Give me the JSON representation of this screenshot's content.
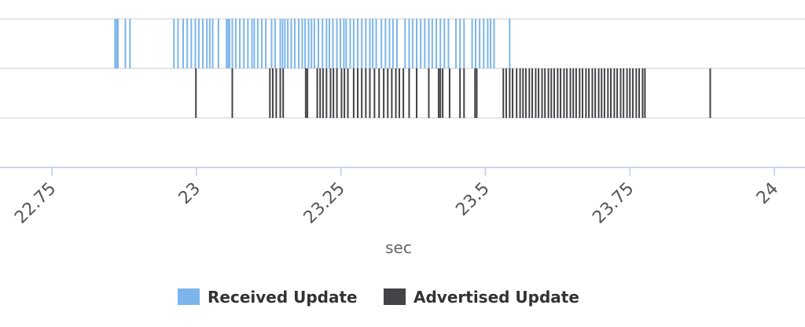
{
  "chart_data": {
    "type": "timeline",
    "xlabel": "sec",
    "xlim": [
      22.66,
      24.053
    ],
    "xticks": [
      22.75,
      23,
      23.25,
      23.5,
      23.75,
      24
    ],
    "series": [
      {
        "name": "Received Update",
        "color": "#7cb5ec",
        "x": [
          22.859,
          22.862,
          22.864,
          22.877,
          22.885,
          22.961,
          22.968,
          22.977,
          22.984,
          22.991,
          22.998,
          23.004,
          23.011,
          23.018,
          23.023,
          23.028,
          23.038,
          23.052,
          23.055,
          23.057,
          23.062,
          23.068,
          23.075,
          23.082,
          23.089,
          23.096,
          23.1,
          23.106,
          23.113,
          23.12,
          23.13,
          23.136,
          23.145,
          23.149,
          23.153,
          23.158,
          23.164,
          23.17,
          23.177,
          23.183,
          23.188,
          23.194,
          23.199,
          23.204,
          23.211,
          23.218,
          23.225,
          23.23,
          23.236,
          23.243,
          23.249,
          23.255,
          23.259,
          23.266,
          23.272,
          23.279,
          23.286,
          23.293,
          23.3,
          23.305,
          23.311,
          23.32,
          23.327,
          23.334,
          23.34,
          23.347,
          23.361,
          23.368,
          23.374,
          23.381,
          23.388,
          23.395,
          23.402,
          23.408,
          23.415,
          23.422,
          23.429,
          23.436,
          23.449,
          23.456,
          23.463,
          23.477,
          23.483,
          23.49,
          23.497,
          23.504,
          23.509,
          23.515,
          23.542
        ]
      },
      {
        "name": "Advertised Update",
        "color": "#434348",
        "x": [
          22.999,
          23.062,
          23.127,
          23.132,
          23.138,
          23.145,
          23.15,
          23.189,
          23.192,
          23.209,
          23.214,
          23.219,
          23.225,
          23.232,
          23.237,
          23.243,
          23.251,
          23.256,
          23.262,
          23.272,
          23.279,
          23.286,
          23.293,
          23.3,
          23.308,
          23.316,
          23.324,
          23.331,
          23.338,
          23.345,
          23.351,
          23.358,
          23.368,
          23.381,
          23.402,
          23.419,
          23.422,
          23.426,
          23.438,
          23.456,
          23.463,
          23.482,
          23.485,
          23.531,
          23.536,
          23.542,
          23.547,
          23.554,
          23.56,
          23.565,
          23.57,
          23.576,
          23.581,
          23.587,
          23.592,
          23.598,
          23.603,
          23.609,
          23.614,
          23.619,
          23.625,
          23.63,
          23.636,
          23.641,
          23.647,
          23.652,
          23.657,
          23.663,
          23.668,
          23.674,
          23.679,
          23.685,
          23.69,
          23.696,
          23.701,
          23.706,
          23.712,
          23.717,
          23.723,
          23.728,
          23.734,
          23.739,
          23.745,
          23.75,
          23.755,
          23.761,
          23.766,
          23.772,
          23.776,
          23.889
        ]
      }
    ]
  }
}
